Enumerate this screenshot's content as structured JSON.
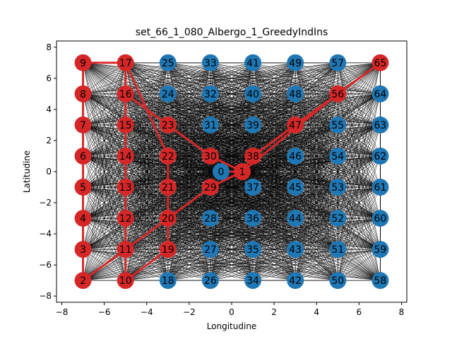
{
  "chart_data": {
    "type": "scatter",
    "title": "set_66_1_080_Albergo_1_GreedyIndIns",
    "xlabel": "Longitudine",
    "ylabel": "Latitudine",
    "xlim": [
      -8.25,
      8.25
    ],
    "ylim": [
      -8.4,
      8.4
    ],
    "xticks": [
      -8,
      -6,
      -4,
      -2,
      0,
      2,
      4,
      6,
      8
    ],
    "yticks": [
      -8,
      -6,
      -4,
      -2,
      0,
      2,
      4,
      6,
      8
    ],
    "xtick_labels": [
      "−8",
      "−6",
      "−4",
      "−2",
      "0",
      "2",
      "4",
      "6",
      "8"
    ],
    "ytick_labels": [
      "−8",
      "−6",
      "−4",
      "−2",
      "0",
      "2",
      "4",
      "6",
      "8"
    ],
    "grid": false,
    "colors": {
      "selected": "#d62728",
      "unselected": "#1f77b4",
      "edge": "#000000",
      "route": "#d62728"
    },
    "nodes": [
      {
        "id": 0,
        "x": -0.5,
        "y": 0,
        "selected": false
      },
      {
        "id": 1,
        "x": 0.5,
        "y": 0,
        "selected": true
      },
      {
        "id": 2,
        "x": -7,
        "y": -7,
        "selected": true
      },
      {
        "id": 3,
        "x": -7,
        "y": -5,
        "selected": true
      },
      {
        "id": 4,
        "x": -7,
        "y": -3,
        "selected": true
      },
      {
        "id": 5,
        "x": -7,
        "y": -1,
        "selected": true
      },
      {
        "id": 6,
        "x": -7,
        "y": 1,
        "selected": true
      },
      {
        "id": 7,
        "x": -7,
        "y": 3,
        "selected": true
      },
      {
        "id": 8,
        "x": -7,
        "y": 5,
        "selected": true
      },
      {
        "id": 9,
        "x": -7,
        "y": 7,
        "selected": true
      },
      {
        "id": 10,
        "x": -5,
        "y": -7,
        "selected": true
      },
      {
        "id": 11,
        "x": -5,
        "y": -5,
        "selected": true
      },
      {
        "id": 12,
        "x": -5,
        "y": -3,
        "selected": true
      },
      {
        "id": 13,
        "x": -5,
        "y": -1,
        "selected": true
      },
      {
        "id": 14,
        "x": -5,
        "y": 1,
        "selected": true
      },
      {
        "id": 15,
        "x": -5,
        "y": 3,
        "selected": true
      },
      {
        "id": 16,
        "x": -5,
        "y": 5,
        "selected": true
      },
      {
        "id": 17,
        "x": -5,
        "y": 7,
        "selected": true
      },
      {
        "id": 18,
        "x": -3,
        "y": -7,
        "selected": false
      },
      {
        "id": 19,
        "x": -3,
        "y": -5,
        "selected": true
      },
      {
        "id": 20,
        "x": -3,
        "y": -3,
        "selected": true
      },
      {
        "id": 21,
        "x": -3,
        "y": -1,
        "selected": true
      },
      {
        "id": 22,
        "x": -3,
        "y": 1,
        "selected": true
      },
      {
        "id": 23,
        "x": -3,
        "y": 3,
        "selected": true
      },
      {
        "id": 24,
        "x": -3,
        "y": 5,
        "selected": false
      },
      {
        "id": 25,
        "x": -3,
        "y": 7,
        "selected": false
      },
      {
        "id": 26,
        "x": -1,
        "y": -7,
        "selected": false
      },
      {
        "id": 27,
        "x": -1,
        "y": -5,
        "selected": false
      },
      {
        "id": 28,
        "x": -1,
        "y": -3,
        "selected": false
      },
      {
        "id": 29,
        "x": -1,
        "y": -1,
        "selected": true
      },
      {
        "id": 30,
        "x": -1,
        "y": 1,
        "selected": true
      },
      {
        "id": 31,
        "x": -1,
        "y": 3,
        "selected": false
      },
      {
        "id": 32,
        "x": -1,
        "y": 5,
        "selected": false
      },
      {
        "id": 33,
        "x": -1,
        "y": 7,
        "selected": false
      },
      {
        "id": 34,
        "x": 1,
        "y": -7,
        "selected": false
      },
      {
        "id": 35,
        "x": 1,
        "y": -5,
        "selected": false
      },
      {
        "id": 36,
        "x": 1,
        "y": -3,
        "selected": false
      },
      {
        "id": 37,
        "x": 1,
        "y": -1,
        "selected": false
      },
      {
        "id": 38,
        "x": 1,
        "y": 1,
        "selected": true
      },
      {
        "id": 39,
        "x": 1,
        "y": 3,
        "selected": false
      },
      {
        "id": 40,
        "x": 1,
        "y": 5,
        "selected": false
      },
      {
        "id": 41,
        "x": 1,
        "y": 7,
        "selected": false
      },
      {
        "id": 42,
        "x": 3,
        "y": -7,
        "selected": false
      },
      {
        "id": 43,
        "x": 3,
        "y": -5,
        "selected": false
      },
      {
        "id": 44,
        "x": 3,
        "y": -3,
        "selected": false
      },
      {
        "id": 45,
        "x": 3,
        "y": -1,
        "selected": false
      },
      {
        "id": 46,
        "x": 3,
        "y": 1,
        "selected": false
      },
      {
        "id": 47,
        "x": 3,
        "y": 3,
        "selected": true
      },
      {
        "id": 48,
        "x": 3,
        "y": 5,
        "selected": false
      },
      {
        "id": 49,
        "x": 3,
        "y": 7,
        "selected": false
      },
      {
        "id": 50,
        "x": 5,
        "y": -7,
        "selected": false
      },
      {
        "id": 51,
        "x": 5,
        "y": -5,
        "selected": false
      },
      {
        "id": 52,
        "x": 5,
        "y": -3,
        "selected": false
      },
      {
        "id": 53,
        "x": 5,
        "y": -1,
        "selected": false
      },
      {
        "id": 54,
        "x": 5,
        "y": 1,
        "selected": false
      },
      {
        "id": 55,
        "x": 5,
        "y": 3,
        "selected": false
      },
      {
        "id": 56,
        "x": 5,
        "y": 5,
        "selected": true
      },
      {
        "id": 57,
        "x": 5,
        "y": 7,
        "selected": false
      },
      {
        "id": 58,
        "x": 7,
        "y": -7,
        "selected": false
      },
      {
        "id": 59,
        "x": 7,
        "y": -5,
        "selected": false
      },
      {
        "id": 60,
        "x": 7,
        "y": -3,
        "selected": false
      },
      {
        "id": 61,
        "x": 7,
        "y": -1,
        "selected": false
      },
      {
        "id": 62,
        "x": 7,
        "y": 1,
        "selected": false
      },
      {
        "id": 63,
        "x": 7,
        "y": 3,
        "selected": false
      },
      {
        "id": 64,
        "x": 7,
        "y": 5,
        "selected": false
      },
      {
        "id": 65,
        "x": 7,
        "y": 7,
        "selected": true
      }
    ],
    "route": [
      1,
      56,
      65,
      47,
      38,
      1,
      30,
      23,
      16,
      17,
      9,
      8,
      7,
      6,
      5,
      4,
      3,
      2,
      29,
      1,
      0
    ],
    "route_extra": [
      [
        17,
        22
      ],
      [
        22,
        21
      ],
      [
        21,
        20
      ],
      [
        20,
        19
      ],
      [
        19,
        10
      ],
      [
        10,
        11
      ],
      [
        11,
        12
      ],
      [
        12,
        13
      ],
      [
        13,
        14
      ],
      [
        14,
        15
      ],
      [
        15,
        16
      ],
      [
        16,
        17
      ],
      [
        38,
        65
      ]
    ]
  }
}
